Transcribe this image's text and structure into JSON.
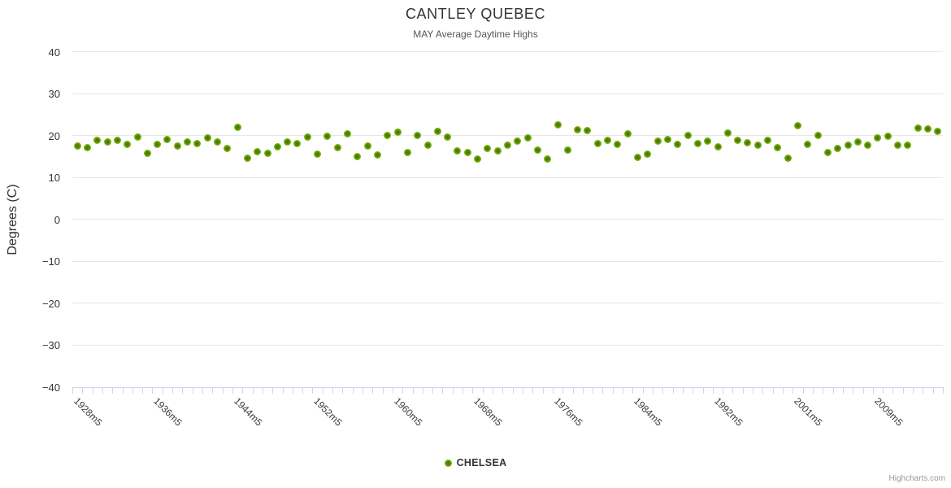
{
  "header": {
    "title": "CANTLEY QUEBEC",
    "subtitle": "MAY Average Daytime Highs"
  },
  "credits": {
    "label": "Highcharts.com"
  },
  "colors": {
    "point_core": "#3f6e04",
    "point_fill": "#76b006",
    "point_edge": "#8cc71f",
    "gridline": "#e6e6e6",
    "axis_line": "#ccd6eb",
    "title": "#333333",
    "subtitle": "#555555",
    "axis_label": "#3a3a3a",
    "credits": "#999999",
    "background": "#ffffff"
  },
  "chart_data": {
    "type": "scatter",
    "title": "CANTLEY QUEBEC",
    "subtitle": "MAY Average Daytime Highs",
    "xlabel": "",
    "ylabel": "Degrees (C)",
    "ylim": [
      -40,
      40
    ],
    "ytick_step": 10,
    "ytick_labels": [
      "40",
      "30",
      "20",
      "10",
      "0",
      "−10",
      "−20",
      "−30",
      "−40"
    ],
    "grid": true,
    "legend_position": "bottom-center",
    "x_tick_label_interval": 8,
    "visible_x_labels": [
      "1928m5",
      "1936m5",
      "1944m5",
      "1952m5",
      "1960m5",
      "1968m5",
      "1976m5",
      "1984m5",
      "1992m5",
      "2001m5",
      "2009m5"
    ],
    "categories": [
      "1928m5",
      "1929m5",
      "1930m5",
      "1931m5",
      "1932m5",
      "1933m5",
      "1934m5",
      "1935m5",
      "1936m5",
      "1937m5",
      "1938m5",
      "1939m5",
      "1940m5",
      "1941m5",
      "1942m5",
      "1943m5",
      "1944m5",
      "1945m5",
      "1946m5",
      "1947m5",
      "1948m5",
      "1949m5",
      "1950m5",
      "1951m5",
      "1952m5",
      "1953m5",
      "1954m5",
      "1955m5",
      "1956m5",
      "1957m5",
      "1958m5",
      "1959m5",
      "1960m5",
      "1961m5",
      "1962m5",
      "1963m5",
      "1964m5",
      "1965m5",
      "1966m5",
      "1967m5",
      "1968m5",
      "1969m5",
      "1970m5",
      "1971m5",
      "1972m5",
      "1973m5",
      "1974m5",
      "1975m5",
      "1976m5",
      "1977m5",
      "1978m5",
      "1979m5",
      "1980m5",
      "1981m5",
      "1982m5",
      "1983m5",
      "1984m5",
      "1985m5",
      "1986m5",
      "1987m5",
      "1988m5",
      "1989m5",
      "1990m5",
      "1991m5",
      "1992m5",
      "1993m5",
      "1994m5",
      "1995m5",
      "1997m5",
      "1998m5",
      "1999m5",
      "2000m5",
      "2001m5",
      "2002m5",
      "2003m5",
      "2004m5",
      "2005m5",
      "2006m5",
      "2007m5",
      "2008m5",
      "2009m5",
      "2010m5",
      "2011m5",
      "2012m5",
      "2013m5",
      "2014m5",
      "2015m5"
    ],
    "series": [
      {
        "name": "CHELSEA",
        "color": "#76b006",
        "values": [
          17.4,
          17.0,
          18.9,
          18.4,
          18.9,
          17.9,
          19.6,
          15.7,
          17.9,
          19.1,
          17.5,
          18.4,
          18.0,
          19.4,
          18.4,
          16.8,
          22.0,
          14.5,
          16.2,
          15.7,
          17.2,
          18.5,
          18.1,
          19.6,
          15.5,
          19.9,
          17.0,
          20.3,
          15.0,
          17.4,
          15.3,
          20.0,
          20.8,
          16.0,
          20.0,
          17.6,
          21.0,
          19.6,
          16.3,
          15.9,
          14.4,
          16.8,
          16.3,
          17.7,
          18.6,
          19.4,
          16.6,
          14.4,
          22.5,
          16.5,
          21.3,
          21.2,
          18.1,
          18.8,
          17.8,
          20.3,
          14.8,
          15.5,
          18.6,
          19.0,
          17.8,
          20.0,
          18.0,
          18.7,
          17.3,
          20.6,
          18.9,
          18.3,
          17.6,
          18.9,
          17.1,
          14.6,
          22.3,
          17.9,
          20.0,
          16.0,
          16.8,
          17.7,
          18.4,
          17.6,
          19.4,
          19.9,
          17.7,
          17.7,
          21.8,
          21.6,
          20.9
        ]
      }
    ]
  }
}
